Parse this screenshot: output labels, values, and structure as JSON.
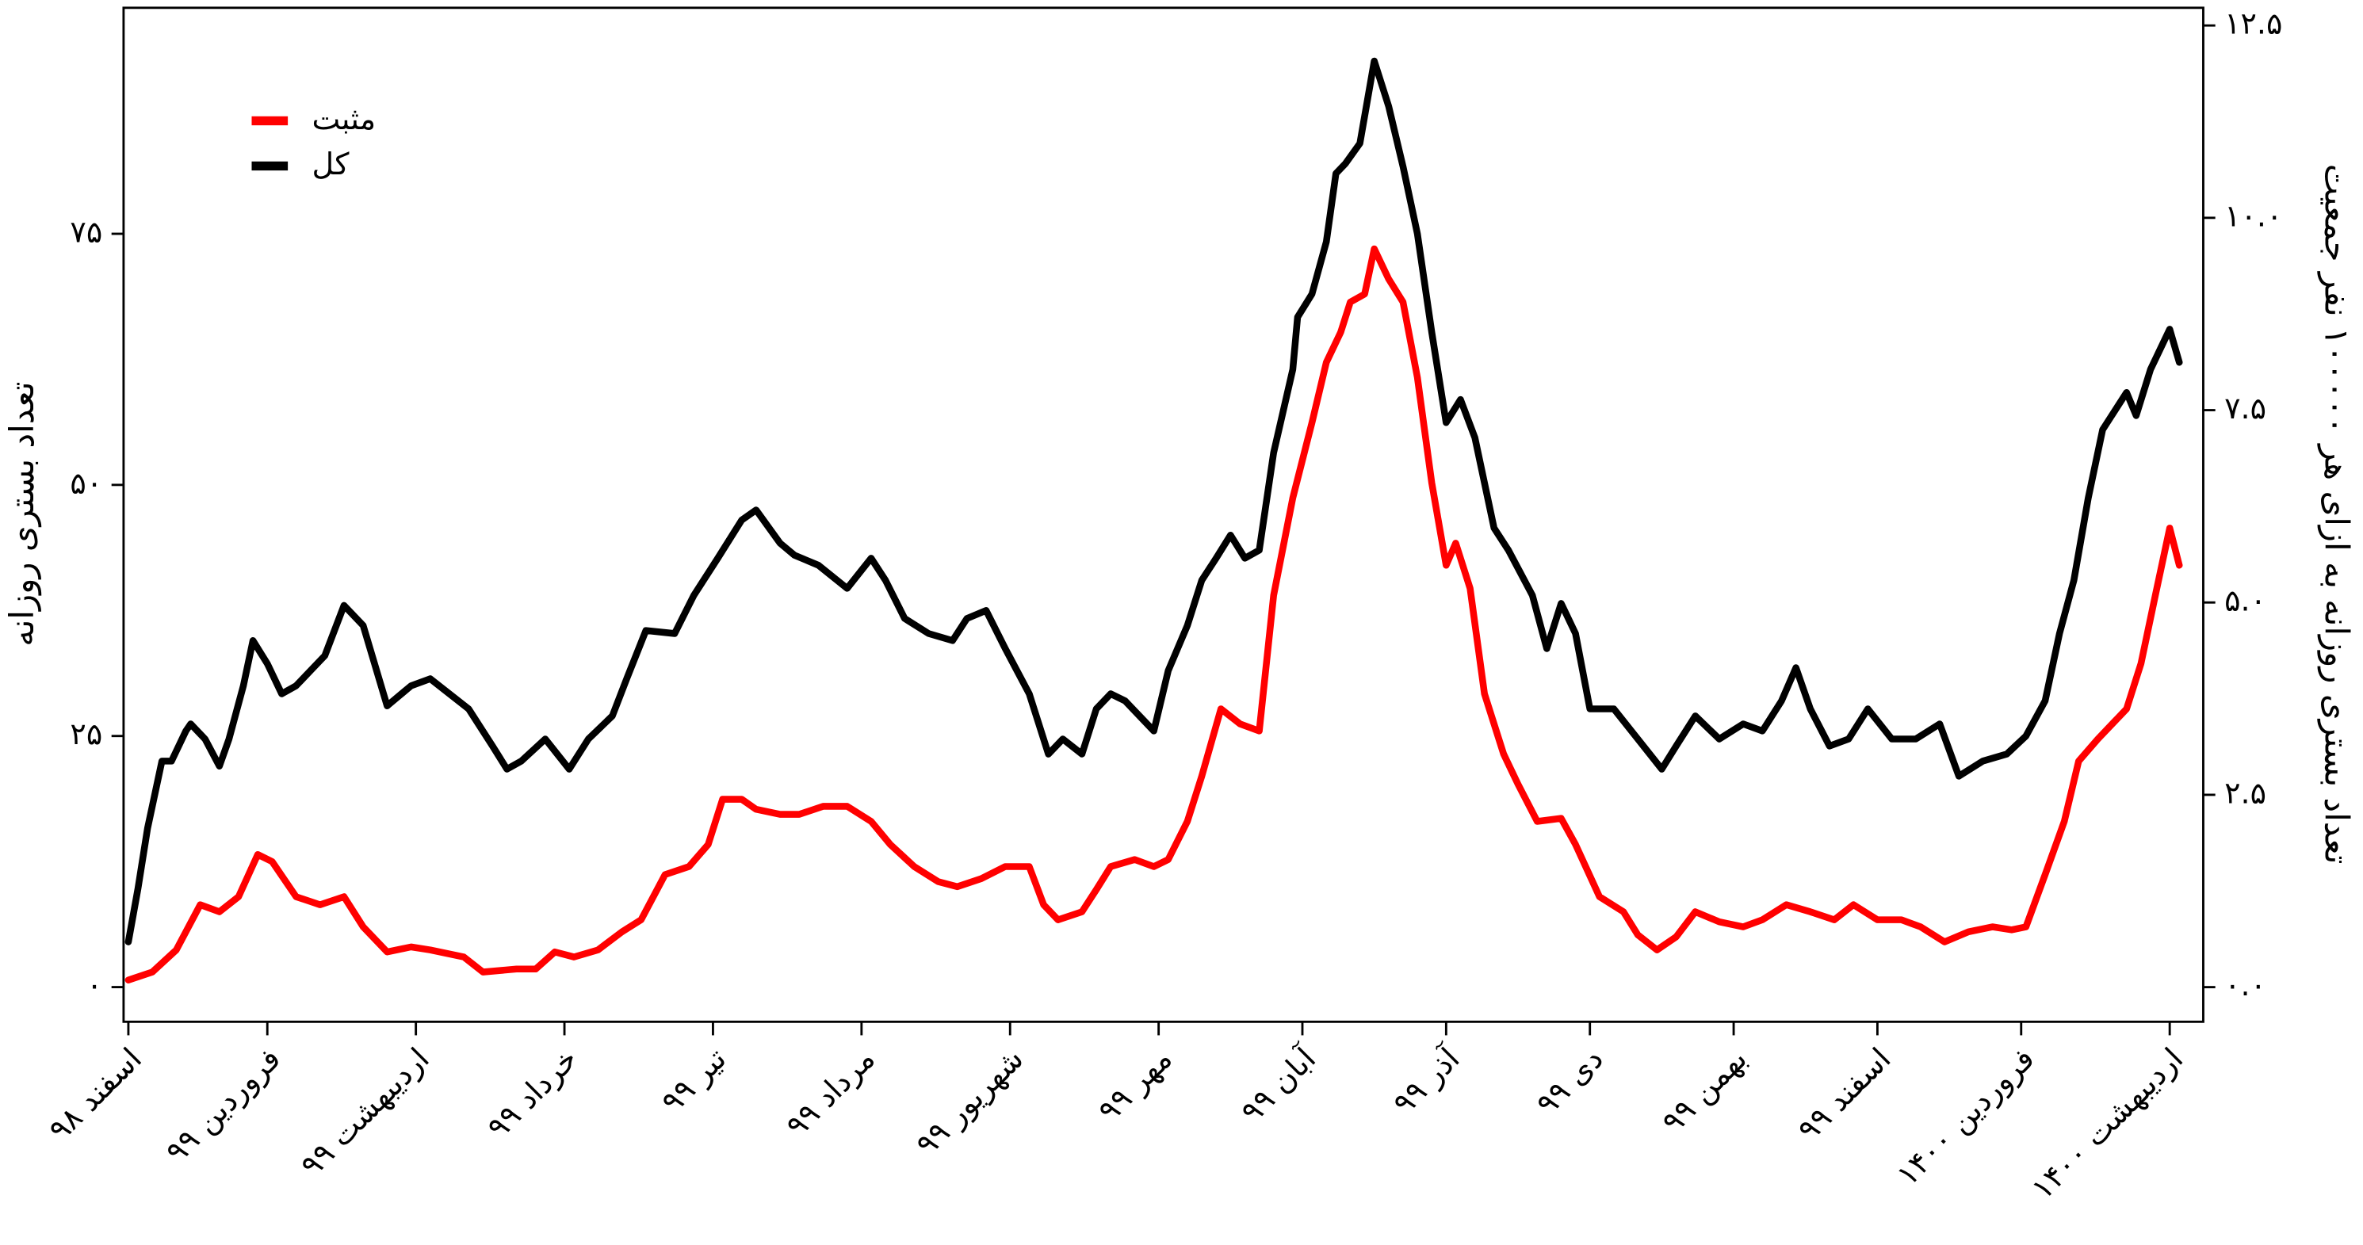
{
  "chart_data": {
    "type": "line",
    "y_label": "تعداد بستری روزانه",
    "y2_label": "تعداد بستری روزانه به ازای هر ۱۰۰۰۰۰ نفر جمعیت",
    "xlim": [
      -1,
      433
    ],
    "xticks": [
      {
        "value": 0,
        "label": "اسفند ۹۸"
      },
      {
        "value": 29,
        "label": "فروردین ۹۹"
      },
      {
        "value": 60,
        "label": "اردیبهشت ۹۹"
      },
      {
        "value": 91,
        "label": "خرداد ۹۹"
      },
      {
        "value": 122,
        "label": "تیر ۹۹"
      },
      {
        "value": 153,
        "label": "مرداد ۹۹"
      },
      {
        "value": 184,
        "label": "شهریور ۹۹"
      },
      {
        "value": 215,
        "label": "مهر ۹۹"
      },
      {
        "value": 245,
        "label": "آبان ۹۹"
      },
      {
        "value": 275,
        "label": "آذر ۹۹"
      },
      {
        "value": 305,
        "label": "دی ۹۹"
      },
      {
        "value": 335,
        "label": "بهمن ۹۹"
      },
      {
        "value": 365,
        "label": "اسفند ۹۹"
      },
      {
        "value": 395,
        "label": "فروردین ۱۴۰۰"
      },
      {
        "value": 426,
        "label": "اردیبهشت ۱۴۰۰"
      }
    ],
    "ylim": [
      -3.45,
      97.5
    ],
    "yticks": [
      {
        "value": 0,
        "label": "۰"
      },
      {
        "value": 25,
        "label": "۲۵"
      },
      {
        "value": 50,
        "label": "۵۰"
      },
      {
        "value": 75,
        "label": "۷۵"
      }
    ],
    "y2lim": [
      -0.45,
      12.73
    ],
    "y2ticks": [
      {
        "value": 0,
        "label": "۰.۰"
      },
      {
        "value": 2.5,
        "label": "۲.۵"
      },
      {
        "value": 5,
        "label": "۵.۰"
      },
      {
        "value": 7.5,
        "label": "۷.۵"
      },
      {
        "value": 10,
        "label": "۱۰.۰"
      },
      {
        "value": 12.5,
        "label": "۱۲.۵"
      }
    ],
    "legend": "upper left",
    "series": [
      {
        "name": "مثبت",
        "color": "#ff0000",
        "x": [
          0,
          5,
          10,
          15,
          19,
          23,
          27,
          30,
          35,
          40,
          45,
          49,
          54,
          59,
          63,
          70,
          74,
          81,
          85,
          89,
          93,
          98,
          103,
          107,
          112,
          117,
          121,
          124,
          128,
          131,
          136,
          140,
          145,
          150,
          155,
          159,
          164,
          169,
          173,
          178,
          183,
          188,
          191,
          194,
          199,
          202,
          205,
          210,
          214,
          217,
          221,
          224,
          228,
          232,
          236,
          239,
          243,
          247,
          250,
          253,
          255,
          258,
          260,
          263,
          266,
          269,
          272,
          275,
          277,
          280,
          283,
          287,
          290,
          294,
          299,
          302,
          307,
          312,
          315,
          319,
          323,
          327,
          332,
          337,
          341,
          346,
          351,
          356,
          360,
          365,
          370,
          374,
          379,
          384,
          389,
          393,
          396,
          400,
          404,
          407,
          411,
          414,
          417,
          420,
          423,
          426,
          428
        ],
        "values": [
          0.7,
          1.5,
          3.7,
          8.2,
          7.5,
          9,
          13.2,
          12.5,
          9,
          8.2,
          9,
          6,
          3.5,
          4,
          3.7,
          3,
          1.5,
          1.8,
          1.8,
          3.5,
          3,
          3.7,
          5.5,
          6.7,
          11.2,
          12,
          14.2,
          18.7,
          18.7,
          17.7,
          17.2,
          17.2,
          18,
          18,
          16.5,
          14.2,
          12,
          10.5,
          10,
          10.8,
          12,
          12,
          8.2,
          6.7,
          7.5,
          9.7,
          12,
          12.7,
          12,
          12.7,
          16.5,
          21,
          27.7,
          26.2,
          25.5,
          39,
          48.7,
          56.2,
          62.2,
          65.2,
          68.2,
          69,
          73.5,
          70.5,
          68.2,
          60.7,
          50.2,
          42,
          44.2,
          39.7,
          29.2,
          23.2,
          20.2,
          16.5,
          16.8,
          14.2,
          9,
          7.5,
          5.2,
          3.7,
          5,
          7.5,
          6.5,
          6,
          6.7,
          8.2,
          7.5,
          6.7,
          8.2,
          6.7,
          6.7,
          6,
          4.5,
          5.5,
          6,
          5.7,
          6,
          11.2,
          16.5,
          22.5,
          24.7,
          26.2,
          27.7,
          32.2,
          39,
          45.7,
          42
        ]
      },
      {
        "name": "کل",
        "color": "#000000",
        "x": [
          0,
          2,
          4,
          7,
          9,
          12,
          13,
          16,
          19,
          21,
          24,
          26,
          29,
          32,
          35,
          38,
          41,
          45,
          49,
          54,
          59,
          63,
          67,
          71,
          76,
          79,
          82,
          87,
          92,
          96,
          101,
          104,
          108,
          114,
          118,
          123,
          128,
          131,
          136,
          139,
          144,
          150,
          155,
          158,
          162,
          167,
          172,
          175,
          179,
          183,
          188,
          192,
          195,
          199,
          202,
          205,
          208,
          211,
          214,
          217,
          221,
          224,
          227,
          230,
          233,
          236,
          239,
          243,
          244,
          247,
          250,
          252,
          254,
          257,
          260,
          263,
          266,
          269,
          272,
          275,
          278,
          281,
          285,
          288,
          293,
          296,
          299,
          302,
          305,
          310,
          315,
          320,
          323,
          327,
          332,
          337,
          341,
          345,
          348,
          351,
          355,
          359,
          363,
          368,
          373,
          378,
          382,
          387,
          392,
          396,
          400,
          403,
          406,
          409,
          412,
          417,
          419,
          422,
          426,
          428
        ],
        "values": [
          4.5,
          9.8,
          15.8,
          22.5,
          22.5,
          25.5,
          26.2,
          24.7,
          22,
          24.7,
          30,
          34.5,
          32.2,
          29.2,
          30,
          31.5,
          33,
          38,
          36,
          28,
          30,
          30.7,
          29.2,
          27.7,
          24,
          21.7,
          22.5,
          24.7,
          21.7,
          24.7,
          27,
          30.7,
          35.5,
          35.2,
          39,
          42.7,
          46.5,
          47.5,
          44.2,
          43,
          42,
          39.7,
          42.7,
          40.5,
          36.7,
          35.2,
          34.5,
          36.7,
          37.5,
          33.7,
          29.2,
          23.2,
          24.7,
          23.2,
          27.7,
          29.2,
          28.5,
          27,
          25.5,
          31.5,
          36,
          40.5,
          42.7,
          45,
          42.7,
          43.5,
          53.2,
          61.5,
          66.7,
          69,
          74.2,
          81,
          82,
          84,
          92.2,
          87.7,
          81.7,
          75,
          65.2,
          56.2,
          58.5,
          54.7,
          45.7,
          43.5,
          39,
          33.7,
          38.2,
          35.2,
          27.7,
          27.7,
          24.7,
          21.7,
          24,
          27,
          24.7,
          26.2,
          25.5,
          28.5,
          31.8,
          27.7,
          24,
          24.7,
          27.7,
          24.7,
          24.7,
          26.2,
          21,
          22.5,
          23.2,
          25,
          28.5,
          35.2,
          40.5,
          48.7,
          55.5,
          59.2,
          56.9,
          61.5,
          65.5,
          62.2
        ]
      }
    ]
  }
}
